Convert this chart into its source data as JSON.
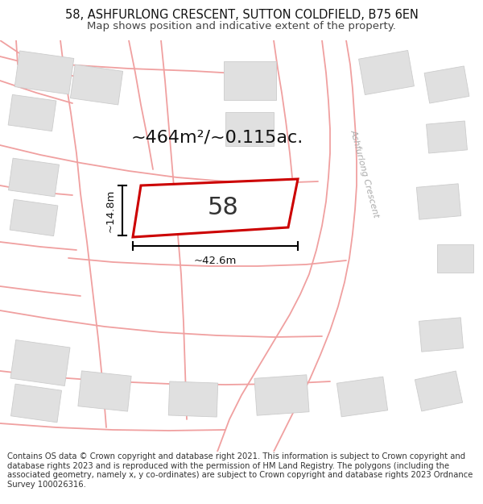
{
  "title_line1": "58, ASHFURLONG CRESCENT, SUTTON COLDFIELD, B75 6EN",
  "title_line2": "Map shows position and indicative extent of the property.",
  "footer_text": "Contains OS data © Crown copyright and database right 2021. This information is subject to Crown copyright and database rights 2023 and is reproduced with the permission of HM Land Registry. The polygons (including the associated geometry, namely x, y co-ordinates) are subject to Crown copyright and database rights 2023 Ordnance Survey 100026316.",
  "property_label": "58",
  "area_label": "~464m²/~0.115ac.",
  "width_label": "~42.6m",
  "height_label": "~14.8m",
  "map_bg": "#f7f7f7",
  "road_color": "#f0a0a0",
  "building_color": "#e0e0e0",
  "building_edge": "#cccccc",
  "property_edge_color": "#cc0000",
  "property_fill_color": "#ffffff",
  "street_label": "Ashfurlong Crescent",
  "title_fontsize": 10.5,
  "subtitle_fontsize": 9.5,
  "footer_fontsize": 7.2,
  "area_fontsize": 16,
  "number_fontsize": 22,
  "dim_fontsize": 9.5,
  "street_fontsize": 8
}
